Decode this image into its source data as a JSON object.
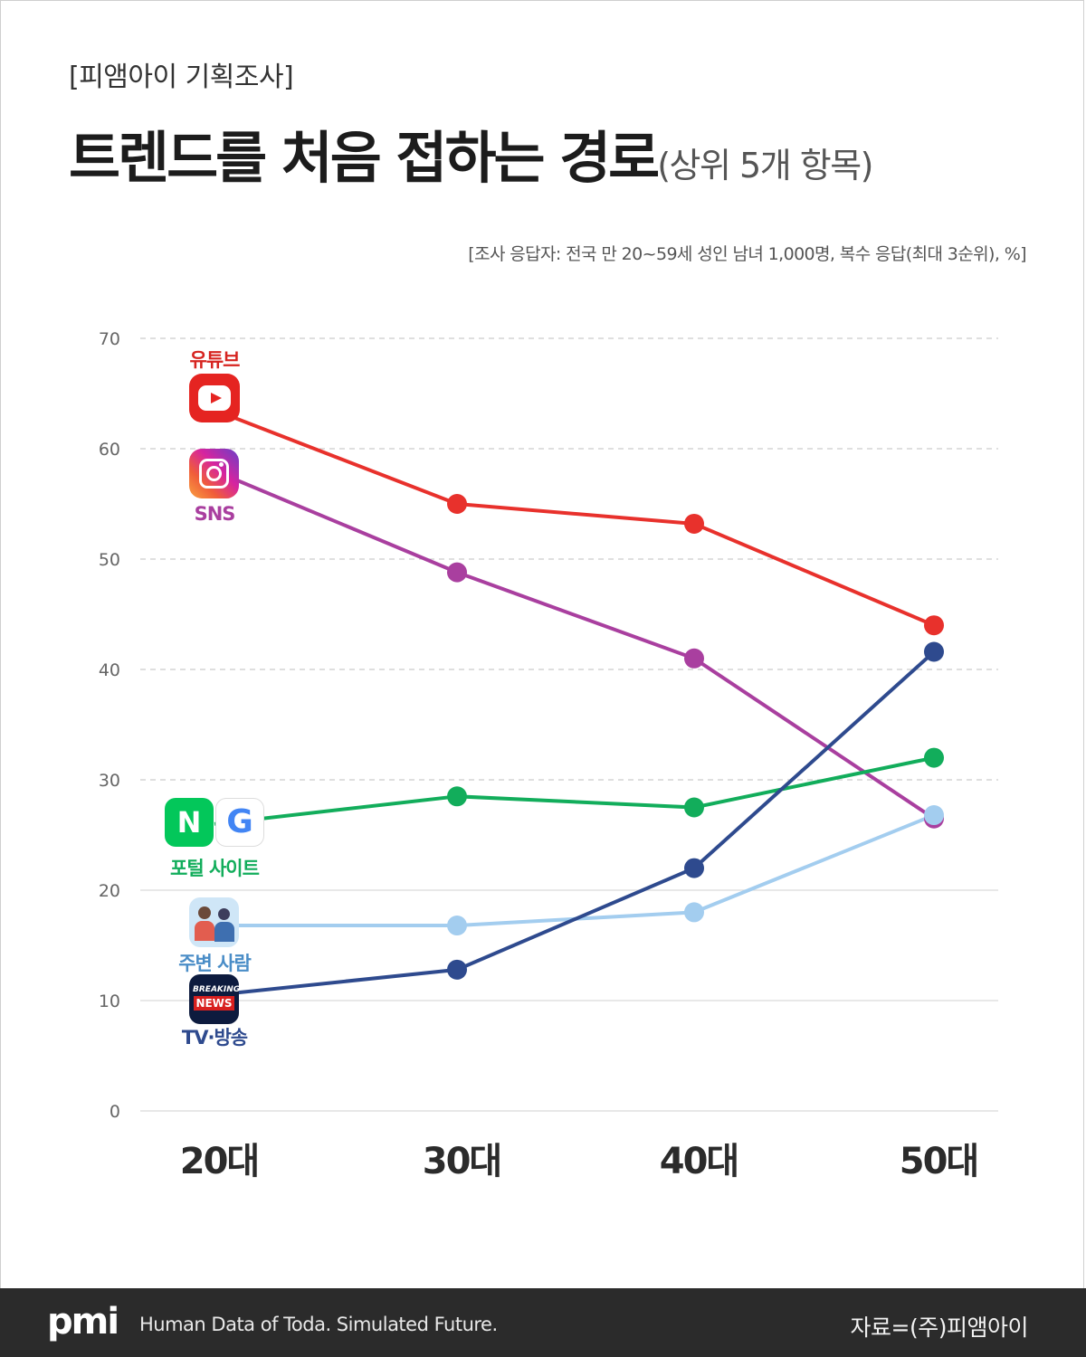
{
  "kicker": "[피앰아이 기획조사]",
  "title": "트렌드를 처음 접하는 경로",
  "subtitle": "(상위 5개 항목)",
  "survey_note": "[조사 응답자: 전국 만 20~59세 성인 남녀 1,000명, 복수 응답(최대 3순위), %]",
  "footer": {
    "logo": "pmi",
    "tagline": "Human Data of Toda. Simulated Future.",
    "source": "자료=(주)피앰아이"
  },
  "icons": {
    "youtube": "youtube-icon",
    "instagram": "instagram-icon",
    "naver": "N",
    "google": "G",
    "people": "people-icon",
    "tv": "breaking-news-icon",
    "breaking": "BREAKING",
    "news": "NEWS"
  },
  "chart_data": {
    "type": "line",
    "categories": [
      "20대",
      "30대",
      "40대",
      "50대"
    ],
    "ylim": [
      0,
      70
    ],
    "yticks": [
      0,
      10,
      20,
      30,
      40,
      50,
      60,
      70
    ],
    "grid": true,
    "series": [
      {
        "name": "유튜브",
        "color": "#e8312c",
        "values": [
          63.5,
          55,
          53.2,
          44
        ]
      },
      {
        "name": "SNS",
        "color": "#a93f9f",
        "values": [
          58,
          48.8,
          41,
          26.5
        ]
      },
      {
        "name": "포털 사이트",
        "color": "#12ad5b",
        "values": [
          26,
          28.5,
          27.5,
          32
        ]
      },
      {
        "name": "주변 사람",
        "color": "#a3cdef",
        "values": [
          16.8,
          16.8,
          18,
          26.8
        ]
      },
      {
        "name": "TV·방송",
        "color": "#2e4a8e",
        "values": [
          10.5,
          12.8,
          22,
          41.6
        ]
      }
    ]
  }
}
